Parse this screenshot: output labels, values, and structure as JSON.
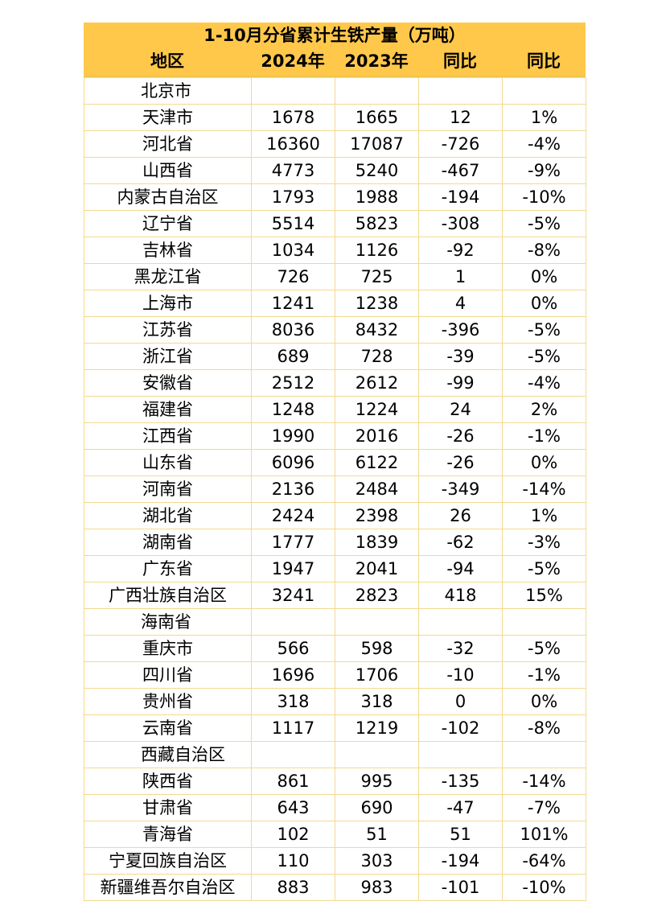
{
  "title": "1-10月分省累计生铁产量（万吨）",
  "headers": [
    "地区",
    "2024年",
    "2023年",
    "同比",
    "同比"
  ],
  "accent_color": "#ffc84a",
  "grid_color": "#f3d98d",
  "rows": [
    {
      "region": "北京市",
      "y2024": "",
      "y2023": "",
      "diff": "",
      "pct": "",
      "left": true
    },
    {
      "region": "天津市",
      "y2024": "1678",
      "y2023": "1665",
      "diff": "12",
      "pct": "1%"
    },
    {
      "region": "河北省",
      "y2024": "16360",
      "y2023": "17087",
      "diff": "-726",
      "pct": "-4%"
    },
    {
      "region": "山西省",
      "y2024": "4773",
      "y2023": "5240",
      "diff": "-467",
      "pct": "-9%"
    },
    {
      "region": "内蒙古自治区",
      "y2024": "1793",
      "y2023": "1988",
      "diff": "-194",
      "pct": "-10%"
    },
    {
      "region": "辽宁省",
      "y2024": "5514",
      "y2023": "5823",
      "diff": "-308",
      "pct": "-5%"
    },
    {
      "region": "吉林省",
      "y2024": "1034",
      "y2023": "1126",
      "diff": "-92",
      "pct": "-8%"
    },
    {
      "region": "黑龙江省",
      "y2024": "726",
      "y2023": "725",
      "diff": "1",
      "pct": "0%"
    },
    {
      "region": "上海市",
      "y2024": "1241",
      "y2023": "1238",
      "diff": "4",
      "pct": "0%"
    },
    {
      "region": "江苏省",
      "y2024": "8036",
      "y2023": "8432",
      "diff": "-396",
      "pct": "-5%"
    },
    {
      "region": "浙江省",
      "y2024": "689",
      "y2023": "728",
      "diff": "-39",
      "pct": "-5%"
    },
    {
      "region": "安徽省",
      "y2024": "2512",
      "y2023": "2612",
      "diff": "-99",
      "pct": "-4%"
    },
    {
      "region": "福建省",
      "y2024": "1248",
      "y2023": "1224",
      "diff": "24",
      "pct": "2%"
    },
    {
      "region": "江西省",
      "y2024": "1990",
      "y2023": "2016",
      "diff": "-26",
      "pct": "-1%"
    },
    {
      "region": "山东省",
      "y2024": "6096",
      "y2023": "6122",
      "diff": "-26",
      "pct": "0%"
    },
    {
      "region": "河南省",
      "y2024": "2136",
      "y2023": "2484",
      "diff": "-349",
      "pct": "-14%"
    },
    {
      "region": "湖北省",
      "y2024": "2424",
      "y2023": "2398",
      "diff": "26",
      "pct": "1%"
    },
    {
      "region": "湖南省",
      "y2024": "1777",
      "y2023": "1839",
      "diff": "-62",
      "pct": "-3%"
    },
    {
      "region": "广东省",
      "y2024": "1947",
      "y2023": "2041",
      "diff": "-94",
      "pct": "-5%"
    },
    {
      "region": "广西壮族自治区",
      "y2024": "3241",
      "y2023": "2823",
      "diff": "418",
      "pct": "15%"
    },
    {
      "region": "海南省",
      "y2024": "",
      "y2023": "",
      "diff": "",
      "pct": "",
      "left": true
    },
    {
      "region": "重庆市",
      "y2024": "566",
      "y2023": "598",
      "diff": "-32",
      "pct": "-5%"
    },
    {
      "region": "四川省",
      "y2024": "1696",
      "y2023": "1706",
      "diff": "-10",
      "pct": "-1%"
    },
    {
      "region": "贵州省",
      "y2024": "318",
      "y2023": "318",
      "diff": "0",
      "pct": "0%"
    },
    {
      "region": "云南省",
      "y2024": "1117",
      "y2023": "1219",
      "diff": "-102",
      "pct": "-8%"
    },
    {
      "region": "西藏自治区",
      "y2024": "",
      "y2023": "",
      "diff": "",
      "pct": "",
      "left": true
    },
    {
      "region": "陕西省",
      "y2024": "861",
      "y2023": "995",
      "diff": "-135",
      "pct": "-14%"
    },
    {
      "region": "甘肃省",
      "y2024": "643",
      "y2023": "690",
      "diff": "-47",
      "pct": "-7%"
    },
    {
      "region": "青海省",
      "y2024": "102",
      "y2023": "51",
      "diff": "51",
      "pct": "101%"
    },
    {
      "region": "宁夏回族自治区",
      "y2024": "110",
      "y2023": "303",
      "diff": "-194",
      "pct": "-64%"
    },
    {
      "region": "新疆维吾尔自治区",
      "y2024": "883",
      "y2023": "983",
      "diff": "-101",
      "pct": "-10%"
    }
  ]
}
